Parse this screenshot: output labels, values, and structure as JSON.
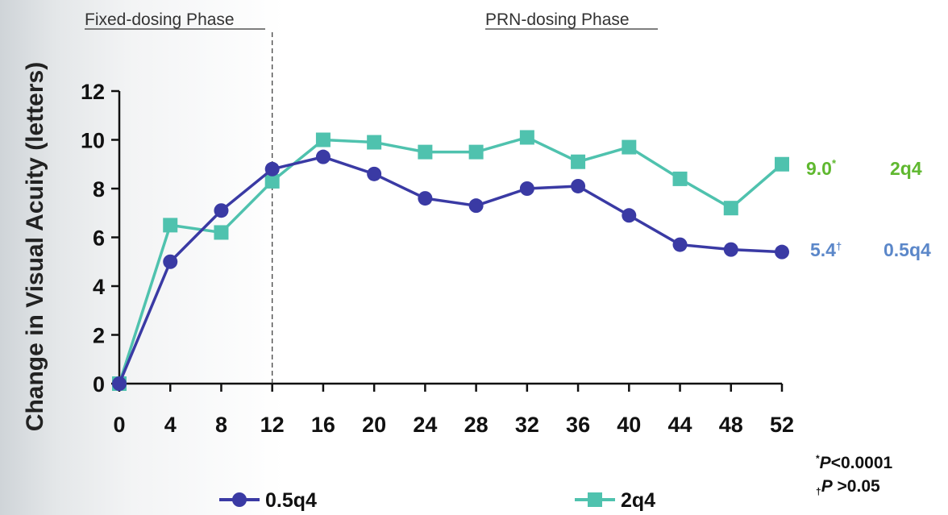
{
  "chart_data": {
    "type": "line",
    "ylabel": "Change in Visual Acuity (letters)",
    "xlabel": "",
    "x": [
      0,
      4,
      8,
      12,
      16,
      20,
      24,
      28,
      32,
      36,
      40,
      44,
      48,
      52
    ],
    "xlim": [
      0,
      52
    ],
    "ylim": [
      0,
      12
    ],
    "yticks": [
      0,
      2,
      4,
      6,
      8,
      10,
      12
    ],
    "phase_divider_x": 12,
    "phases": [
      "Fixed-dosing Phase",
      "PRN-dosing Phase"
    ],
    "grid": false,
    "legend_position": "bottom",
    "series": [
      {
        "name": "0.5q4",
        "color": "#3a3aa4",
        "marker": "circle",
        "values": [
          0,
          5.0,
          7.1,
          8.8,
          9.3,
          8.6,
          7.6,
          7.3,
          8.0,
          8.1,
          6.9,
          5.7,
          5.5,
          5.4
        ],
        "end_value_label": "5.4",
        "end_value_mark": "†",
        "end_label_color": "#5b87c9",
        "end_name_label": "0.5q4"
      },
      {
        "name": "2q4",
        "color": "#4fc2ae",
        "marker": "square",
        "values": [
          0,
          6.5,
          6.2,
          8.3,
          10.0,
          9.9,
          9.5,
          9.5,
          10.1,
          9.1,
          9.7,
          8.4,
          7.2,
          9.0
        ],
        "end_value_label": "9.0",
        "end_value_mark": "*",
        "end_label_color": "#5fb82f",
        "end_name_label": "2q4"
      }
    ],
    "footnotes": [
      {
        "mark": "*",
        "stat": "P",
        "text": "<0.0001"
      },
      {
        "mark": "†",
        "stat": "P",
        "text": " >0.05"
      }
    ]
  }
}
